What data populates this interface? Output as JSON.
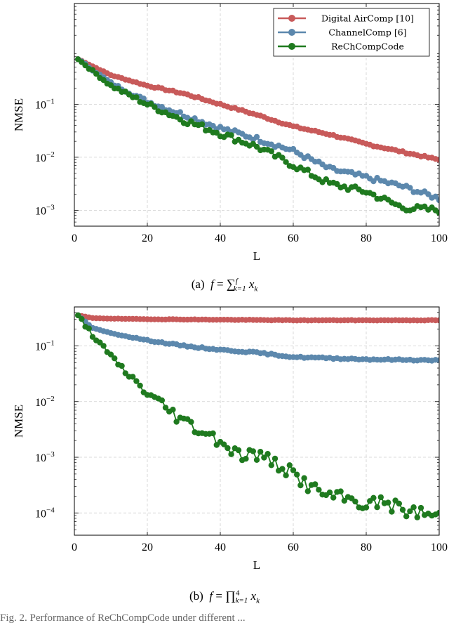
{
  "colors": {
    "digital": "#c85a5a",
    "channel": "#5c88ad",
    "rechcomp": "#1f7a1f"
  },
  "chart_data": [
    {
      "type": "line",
      "yscale": "log",
      "xlabel": "L",
      "ylabel": "NMSE",
      "xlim": [
        0,
        100
      ],
      "ylim_exp": [
        -3.3,
        0.9
      ],
      "x_ticks": [
        "0",
        "20",
        "40",
        "60",
        "80",
        "100"
      ],
      "y_ticks": [
        {
          "exp": -1,
          "base": "10",
          "sup": "−1"
        },
        {
          "exp": -2,
          "base": "10",
          "sup": "−2"
        },
        {
          "exp": -3,
          "base": "10",
          "sup": "−3"
        }
      ],
      "legend": [
        "Digital AirComp [10]",
        "ChannelComp [6]",
        "ReChCompCode"
      ],
      "caption": {
        "label": "(a)",
        "var": "f",
        "eq": "=",
        "op": "∑",
        "upper": "f",
        "lower": "k=1",
        "term": "x",
        "sub": "k"
      },
      "series": [
        {
          "name": "Digital AirComp [10]",
          "color_key": "digital",
          "x": [
            1,
            10,
            20,
            30,
            40,
            50,
            60,
            70,
            80,
            90,
            100
          ],
          "log10_y": [
            -0.15,
            -0.45,
            -0.65,
            -0.8,
            -1.0,
            -1.2,
            -1.42,
            -1.57,
            -1.75,
            -1.9,
            -2.05
          ],
          "noise": 0.015
        },
        {
          "name": "ChannelComp [6]",
          "color_key": "channel",
          "x": [
            1,
            10,
            20,
            30,
            40,
            50,
            60,
            70,
            80,
            90,
            100
          ],
          "log10_y": [
            -0.15,
            -0.6,
            -0.95,
            -1.2,
            -1.45,
            -1.65,
            -1.88,
            -2.22,
            -2.38,
            -2.55,
            -2.78
          ],
          "noise": 0.045
        },
        {
          "name": "ReChCompCode",
          "color_key": "rechcomp",
          "x": [
            1,
            10,
            20,
            30,
            40,
            50,
            60,
            70,
            80,
            90,
            100
          ],
          "log10_y": [
            -0.15,
            -0.65,
            -1.0,
            -1.3,
            -1.55,
            -1.8,
            -2.15,
            -2.5,
            -2.65,
            -2.95,
            -3.0
          ],
          "noise": 0.06
        }
      ]
    },
    {
      "type": "line",
      "yscale": "log",
      "xlabel": "L",
      "ylabel": "NMSE",
      "xlim": [
        0,
        100
      ],
      "ylim_exp": [
        -4.4,
        -0.3
      ],
      "x_ticks": [
        "0",
        "20",
        "40",
        "60",
        "80",
        "100"
      ],
      "y_ticks": [
        {
          "exp": -1,
          "base": "10",
          "sup": "−1"
        },
        {
          "exp": -2,
          "base": "10",
          "sup": "−2"
        },
        {
          "exp": -3,
          "base": "10",
          "sup": "−3"
        },
        {
          "exp": -4,
          "base": "10",
          "sup": "−4"
        }
      ],
      "legend": [],
      "caption": {
        "label": "(b)",
        "var": "f",
        "eq": "=",
        "op": "∏",
        "upper": "4",
        "lower": "k=1",
        "term": "x",
        "sub": "k"
      },
      "series": [
        {
          "name": "Digital AirComp [10]",
          "color_key": "digital",
          "x": [
            1,
            5,
            10,
            20,
            40,
            60,
            80,
            100
          ],
          "log10_y": [
            -0.45,
            -0.5,
            -0.51,
            -0.52,
            -0.53,
            -0.54,
            -0.54,
            -0.54
          ],
          "noise": 0.004
        },
        {
          "name": "ChannelComp [6]",
          "color_key": "channel",
          "x": [
            1,
            5,
            10,
            20,
            30,
            40,
            50,
            60,
            70,
            80,
            90,
            100
          ],
          "log10_y": [
            -0.45,
            -0.68,
            -0.77,
            -0.9,
            -1.0,
            -1.07,
            -1.12,
            -1.2,
            -1.22,
            -1.24,
            -1.25,
            -1.26
          ],
          "noise": 0.012
        },
        {
          "name": "ReChCompCode",
          "color_key": "rechcomp",
          "x": [
            1,
            5,
            10,
            20,
            30,
            40,
            45,
            50,
            55,
            60,
            65,
            70,
            75,
            80,
            85,
            90,
            95,
            100
          ],
          "log10_y": [
            -0.45,
            -0.8,
            -1.2,
            -1.85,
            -2.35,
            -2.7,
            -2.95,
            -2.95,
            -3.1,
            -3.3,
            -3.55,
            -3.7,
            -3.75,
            -3.85,
            -3.8,
            -3.95,
            -4.0,
            -4.05
          ],
          "noise": 0.12
        }
      ]
    }
  ],
  "bottom_text": "Fig. 2.   Performance of ReChCompCode under different ..."
}
